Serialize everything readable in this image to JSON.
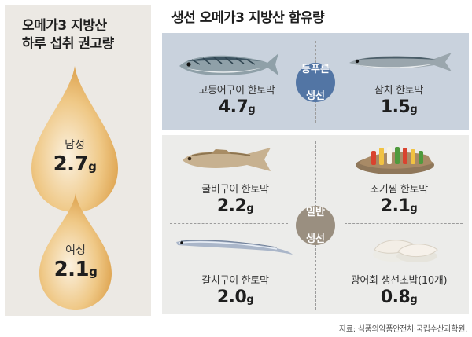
{
  "left": {
    "title_line1": "오메가3 지방산",
    "title_line2": "하루 섭취 권고량",
    "male": {
      "label": "남성",
      "value": "2.7",
      "unit": "g"
    },
    "female": {
      "label": "여성",
      "value": "2.1",
      "unit": "g"
    },
    "drop_color": "#dfa54c"
  },
  "right": {
    "title": "생선 오메가3 지방산 함유량",
    "group_blue": {
      "label_line1": "등푸른",
      "label_line2": "생선",
      "color": "#5275a4"
    },
    "group_gray": {
      "label_line1": "일반",
      "label_line2": "생선",
      "color": "#9a8f80"
    },
    "items": [
      {
        "name": "고등어구이 한토막",
        "value": "4.7",
        "unit": "g",
        "icon": "mackerel-icon"
      },
      {
        "name": "삼치 한토막",
        "value": "1.5",
        "unit": "g",
        "icon": "spanish-mackerel-icon"
      },
      {
        "name": "굴비구이 한토막",
        "value": "2.2",
        "unit": "g",
        "icon": "yellow-croaker-icon"
      },
      {
        "name": "조기찜 한토막",
        "value": "2.1",
        "unit": "g",
        "icon": "steamed-croaker-icon"
      },
      {
        "name": "갈치구이 한토막",
        "value": "2.0",
        "unit": "g",
        "icon": "hairtail-icon"
      },
      {
        "name": "광어회 생선초밥(10개)",
        "value": "0.8",
        "unit": "g",
        "icon": "flatfish-sushi-icon"
      }
    ]
  },
  "source": "자료: 식품의약품안전처·국립수산과학원."
}
